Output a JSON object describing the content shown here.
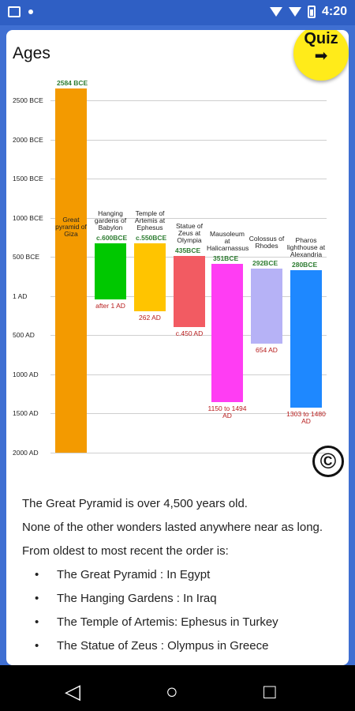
{
  "status": {
    "time": "4:20"
  },
  "page": {
    "title": "Ages",
    "quiz_label": "Quiz",
    "quiz_arrow": "➡"
  },
  "axis": [
    "2500 BCE",
    "2000 BCE",
    "1500 BCE",
    "1000 BCE",
    "500 BCE",
    "1 AD",
    "500 AD",
    "1000 AD",
    "1500 AD",
    "2000 AD"
  ],
  "bars": [
    {
      "name": "Great pyramid of Giza",
      "color": "#f39a00",
      "top": "2584 BCE",
      "bottom": ""
    },
    {
      "name": "Hanging gardens of Babylon",
      "color": "#00c800",
      "top": "c.600BCE",
      "bottom": "after 1 AD"
    },
    {
      "name": "Temple of Artemis at Ephesus",
      "color": "#ffc400",
      "top": "c.550BCE",
      "bottom": "262 AD"
    },
    {
      "name": "Statue of Zeus at Olympia",
      "color": "#f25b62",
      "top": "435BCE",
      "bottom": "c.450 AD"
    },
    {
      "name": "Mausoleum at Halicarnassus",
      "color": "#ff3df3",
      "top": "351BCE",
      "bottom": "1150 to 1494 AD"
    },
    {
      "name": "Colossus of Rhodes",
      "color": "#b6b2f6",
      "top": "292BCE",
      "bottom": "654 AD"
    },
    {
      "name": "Pharos lighthouse at Alexandria",
      "color": "#1e88ff",
      "top": "280BCE",
      "bottom": "1303 to 1480 AD"
    }
  ],
  "text": {
    "p1": "The Great Pyramid is over 4,500 years old.",
    "p2": "None of the other wonders lasted anywhere near as long.",
    "p3": "From oldest to most recent the order is:",
    "items": [
      "The Great Pyramid : In Egypt",
      "The Hanging Gardens : In Iraq",
      "The Temple of Artemis: Ephesus in Turkey",
      "The Statue of Zeus :  Olympus in Greece"
    ]
  },
  "nav": {
    "back": "◁",
    "home": "○",
    "recent": "□"
  }
}
